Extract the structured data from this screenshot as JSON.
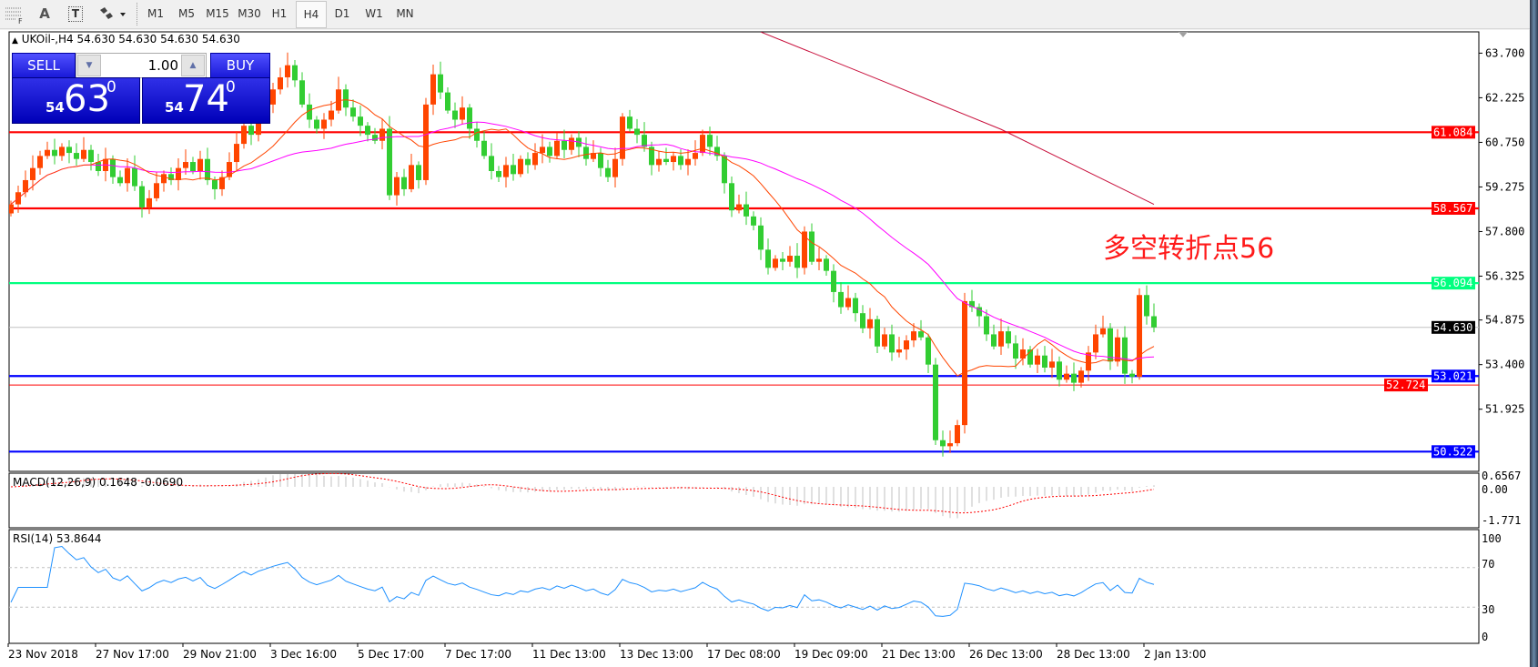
{
  "toolbar": {
    "tools": [
      {
        "name": "fibo-tool",
        "label": "F"
      },
      {
        "name": "text-tool",
        "label": "A"
      },
      {
        "name": "text-label-tool",
        "label": "T"
      },
      {
        "name": "shapes-tool",
        "label": "▾"
      }
    ],
    "timeframes": [
      "M1",
      "M5",
      "M15",
      "M30",
      "H1",
      "H4",
      "D1",
      "W1",
      "MN"
    ],
    "selected_timeframe": "H4"
  },
  "chart": {
    "title": "UKOil-,H4  54.630 54.630 54.630 54.630",
    "annotation": "多空转折点56",
    "macd_label": "MACD(12,26,9) 0.1648 -0.0690",
    "rsi_label": "RSI(14) 53.8644"
  },
  "trade": {
    "sell_label": "SELL",
    "buy_label": "BUY",
    "volume": "1.00",
    "sell_price_prefix": "54",
    "sell_price_main": "63",
    "sell_price_sup": "0",
    "buy_price_prefix": "54",
    "buy_price_main": "74",
    "buy_price_sup": "0"
  },
  "colors": {
    "bull": "#ff4500",
    "bear": "#32cd32",
    "ma_fast": "#ff4500",
    "ma_slow": "#ff00ff",
    "ma_long": "#c8103c",
    "macd_hist": "#c0c0c0",
    "macd_signal": "#ff0000",
    "rsi": "#1e90ff"
  },
  "chart_data": {
    "type": "candlestick",
    "symbol": "UKOil-",
    "timeframe": "H4",
    "ylim": [
      50.3,
      64.4
    ],
    "price_ticks": [
      "63.700",
      "62.225",
      "60.750",
      "59.275",
      "57.800",
      "56.325",
      "54.875",
      "53.400",
      "51.925"
    ],
    "time_ticks": [
      "23 Nov 2018",
      "27 Nov 17:00",
      "29 Nov 21:00",
      "3 Dec 16:00",
      "5 Dec 17:00",
      "7 Dec 17:00",
      "11 Dec 13:00",
      "13 Dec 13:00",
      "17 Dec 08:00",
      "19 Dec 09:00",
      "21 Dec 13:00",
      "26 Dec 13:00",
      "28 Dec 13:00",
      "2 Jan 13:00"
    ],
    "first_open": 58.4,
    "close": [
      58.7,
      59.1,
      59.5,
      59.9,
      60.3,
      60.5,
      60.3,
      60.6,
      60.4,
      60.2,
      60.5,
      60.1,
      59.8,
      60.2,
      59.6,
      59.4,
      59.9,
      59.3,
      58.6,
      58.9,
      59.4,
      59.7,
      59.5,
      59.9,
      60.1,
      59.8,
      60.2,
      59.5,
      59.2,
      59.6,
      60.1,
      60.7,
      61.3,
      61.0,
      61.6,
      62.0,
      62.5,
      62.9,
      63.3,
      62.8,
      62.0,
      61.5,
      61.2,
      61.5,
      61.8,
      62.5,
      61.9,
      61.6,
      61.3,
      61.0,
      60.8,
      61.2,
      59.0,
      59.6,
      59.2,
      60.0,
      59.5,
      62.0,
      63.0,
      62.4,
      61.8,
      61.5,
      61.9,
      61.2,
      60.8,
      60.3,
      59.8,
      59.6,
      60.0,
      59.7,
      60.2,
      60.0,
      60.4,
      60.6,
      60.3,
      60.8,
      60.5,
      60.9,
      60.6,
      60.2,
      60.4,
      59.9,
      59.6,
      60.2,
      61.6,
      61.2,
      61.0,
      60.6,
      60.0,
      60.2,
      60.1,
      60.3,
      60.0,
      60.2,
      60.4,
      61.0,
      60.6,
      60.3,
      59.4,
      58.5,
      58.7,
      58.3,
      58.0,
      57.2,
      56.6,
      56.9,
      56.8,
      57.0,
      56.6,
      57.8,
      56.8,
      56.9,
      56.5,
      55.8,
      55.3,
      55.6,
      55.1,
      54.6,
      54.9,
      54.0,
      54.4,
      53.8,
      53.9,
      54.2,
      54.5,
      54.3,
      53.4,
      50.9,
      50.7,
      50.8,
      51.4,
      55.5,
      55.3,
      55.0,
      54.4,
      54.0,
      54.5,
      54.1,
      53.6,
      53.9,
      53.4,
      53.7,
      53.3,
      53.5,
      52.9,
      53.1,
      52.8,
      53.2,
      53.8,
      54.4,
      54.6,
      53.5,
      54.3,
      53.1,
      53.0,
      55.7,
      55.0,
      54.63
    ],
    "ma_long_points": [
      [
        103,
        64.4
      ],
      [
        120,
        62.75
      ],
      [
        136,
        61.18
      ],
      [
        157,
        58.7
      ]
    ],
    "hlines": [
      {
        "price": 61.084,
        "label": "61.084",
        "color": "#ff0000",
        "bold": true
      },
      {
        "price": 58.567,
        "label": "58.567",
        "color": "#ff0000",
        "bold": true
      },
      {
        "price": 56.094,
        "label": "56.094",
        "color": "#00ff7f",
        "bold": true
      },
      {
        "price": 54.63,
        "label": "54.630",
        "color": "#c0c0c0",
        "label_bg": "#000000",
        "bold": false
      },
      {
        "price": 53.021,
        "label": "53.021",
        "color": "#0000ff",
        "bold": true
      },
      {
        "price": 52.724,
        "label": "52.724",
        "color": "#ff0000",
        "bold": false
      },
      {
        "price": 50.522,
        "label": "50.522",
        "color": "#0000ff",
        "bold": true
      }
    ],
    "macd": {
      "params": [
        12,
        26,
        9
      ],
      "ticks": [
        "0.6567",
        "0.00",
        "-1.771"
      ],
      "range": [
        -1.771,
        0.6567
      ]
    },
    "rsi": {
      "period": 14,
      "ticks": [
        "100",
        "70",
        "30",
        "0"
      ],
      "levels": [
        70,
        30
      ]
    }
  }
}
